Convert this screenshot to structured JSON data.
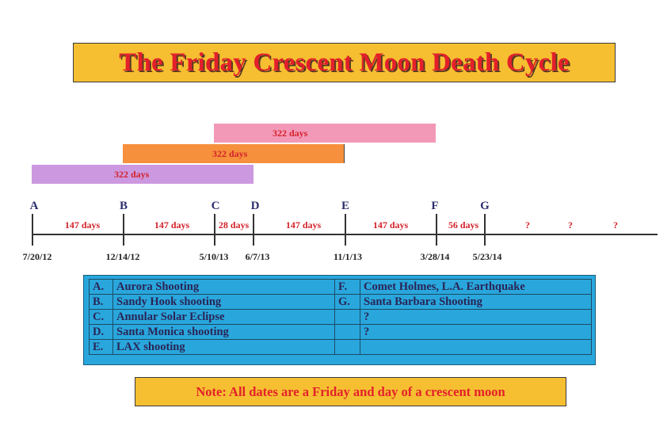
{
  "title": "The Friday Crescent Moon Death Cycle",
  "span_bars": [
    {
      "label": "322 days",
      "color": "#cc99e0"
    },
    {
      "label": "322 days",
      "color": "#f6903c"
    },
    {
      "label": "322 days",
      "color": "#f399b8"
    }
  ],
  "timeline": {
    "events": [
      {
        "letter": "A",
        "date": "7/20/12"
      },
      {
        "letter": "B",
        "date": "12/14/12"
      },
      {
        "letter": "C",
        "date": "5/10/13"
      },
      {
        "letter": "D",
        "date": "6/7/13"
      },
      {
        "letter": "E",
        "date": "11/1/13"
      },
      {
        "letter": "F",
        "date": "3/28/14"
      },
      {
        "letter": "G",
        "date": "5/23/14"
      }
    ],
    "intervals": [
      "147 days",
      "147 days",
      "28 days",
      "147 days",
      "147 days",
      "56 days",
      "?",
      "?",
      "?"
    ]
  },
  "legend": {
    "rows": [
      {
        "k1": "A.",
        "v1": "Aurora Shooting",
        "k2": "F.",
        "v2": "Comet Holmes, L.A. Earthquake"
      },
      {
        "k1": "B.",
        "v1": "Sandy Hook shooting",
        "k2": "G.",
        "v2": "Santa Barbara Shooting"
      },
      {
        "k1": "C.",
        "v1": "Annular Solar Eclipse",
        "k2": "",
        "v2": "?"
      },
      {
        "k1": "D.",
        "v1": "Santa Monica shooting",
        "k2": "",
        "v2": "?"
      },
      {
        "k1": "E.",
        "v1": "LAX shooting",
        "k2": "",
        "v2": ""
      }
    ]
  },
  "note": "Note: All dates are a Friday and day of a crescent moon",
  "colors": {
    "title_bg": "#f6bf31",
    "title_text": "#e3202a",
    "legend_bg": "#29a7dc",
    "letter_color": "#2c2f6d",
    "interval_color": "#d3222a"
  }
}
